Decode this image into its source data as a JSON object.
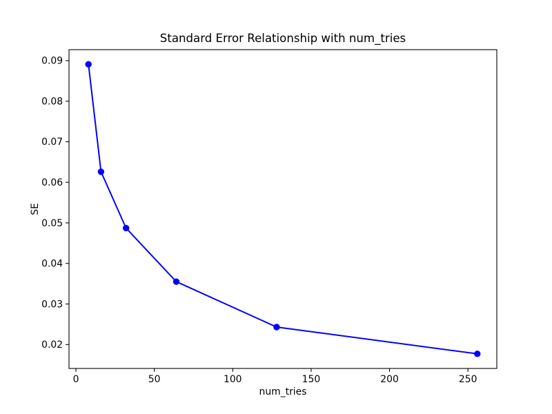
{
  "figure": {
    "background_color": "#ffffff",
    "axes_background_color": "#ffffff",
    "spine_color": "#000000",
    "tick_color": "#000000"
  },
  "chart_data": {
    "type": "line",
    "title": "Standard Error Relationship with num_tries",
    "xlabel": "num_tries",
    "ylabel": "SE",
    "x": [
      8,
      16,
      32,
      64,
      128,
      256
    ],
    "y": [
      0.0891,
      0.0626,
      0.0487,
      0.0355,
      0.0243,
      0.0177
    ],
    "line_color": "#0000ff",
    "marker": "circle",
    "marker_color": "#0000ff",
    "xlim": [
      -4.4,
      268.4
    ],
    "ylim": [
      0.0141,
      0.0927
    ],
    "xticks": {
      "values": [
        0,
        50,
        100,
        150,
        200,
        250
      ],
      "labels": [
        "0",
        "50",
        "100",
        "150",
        "200",
        "250"
      ]
    },
    "yticks": {
      "values": [
        0.02,
        0.03,
        0.04,
        0.05,
        0.06,
        0.07,
        0.08,
        0.09
      ],
      "labels": [
        "0.02",
        "0.03",
        "0.04",
        "0.05",
        "0.06",
        "0.07",
        "0.08",
        "0.09"
      ]
    },
    "grid": false,
    "legend": null
  }
}
